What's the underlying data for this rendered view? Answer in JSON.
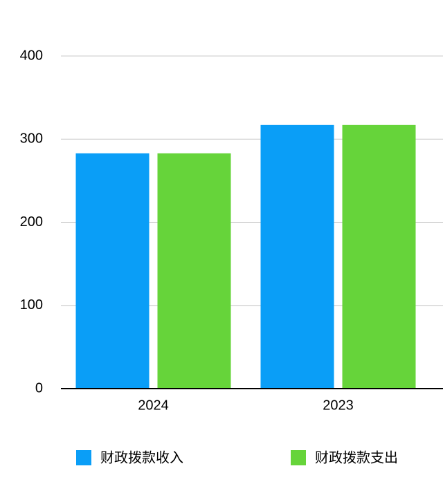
{
  "chart_data": {
    "type": "bar",
    "categories": [
      "2024",
      "2023"
    ],
    "series": [
      {
        "name": "财政拨款收入",
        "color": "#0a9ef7",
        "values": [
          283,
          317
        ]
      },
      {
        "name": "财政拨款支出",
        "color": "#66d43a",
        "values": [
          283,
          317
        ]
      }
    ],
    "ylim": [
      0,
      400
    ],
    "yticks": [
      0,
      100,
      200,
      300,
      400
    ],
    "grid": true
  }
}
